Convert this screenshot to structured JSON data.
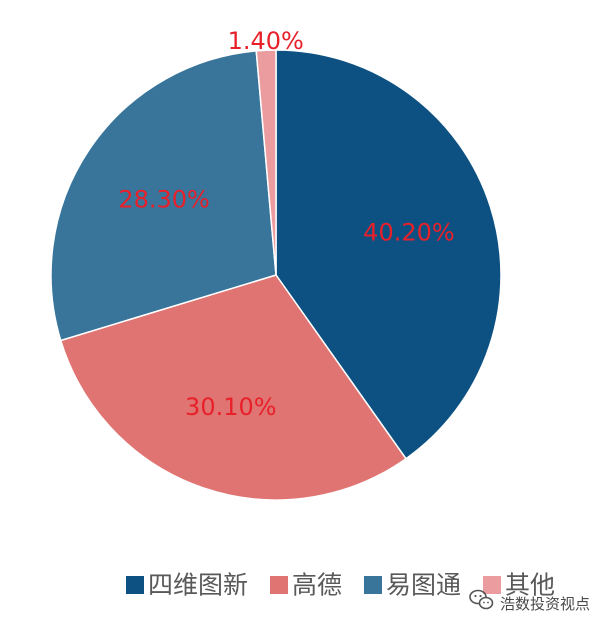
{
  "chart_data": {
    "type": "pie",
    "categories": [
      "四维图新",
      "高德",
      "易图通",
      "其他"
    ],
    "values": [
      40.2,
      30.1,
      28.3,
      1.4
    ],
    "labels": [
      "40.20%",
      "30.10%",
      "28.30%",
      "1.40%"
    ],
    "colors": [
      "#0c5182",
      "#e07472",
      "#39759b",
      "#eb9c9f"
    ],
    "legend_position": "bottom"
  },
  "watermark": {
    "text": "浩数投资视点",
    "icon": "wechat-icon"
  }
}
